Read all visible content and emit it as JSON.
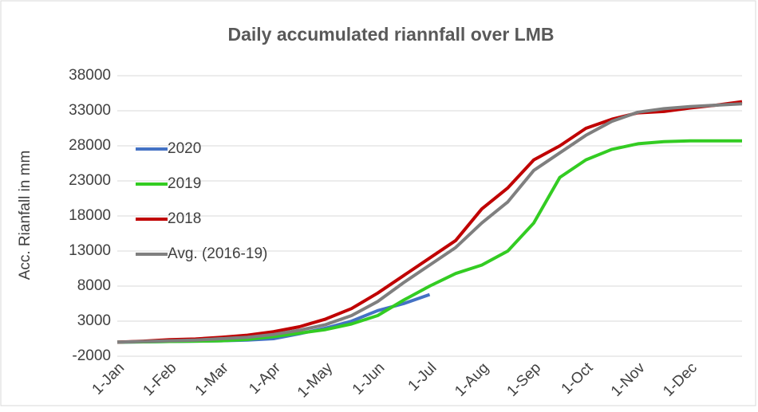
{
  "chart_data": {
    "type": "line",
    "title": "Daily accumulated riannfall over LMB",
    "y_label": "Acc. Rianfall in mm",
    "categories": [
      "1-Jan",
      null,
      "1-Feb",
      null,
      "1-Mar",
      null,
      "1-Apr",
      null,
      "1-May",
      null,
      "1-Jun",
      null,
      "1-Jul",
      null,
      "1-Aug",
      null,
      "1-Sep",
      null,
      "1-Oct",
      null,
      "1-Nov",
      null,
      "1-Dec",
      null,
      null
    ],
    "series": [
      {
        "name": "2020",
        "color": "#4472c4",
        "values": [
          0,
          50,
          100,
          150,
          200,
          300,
          500,
          1200,
          2000,
          3000,
          4500,
          5500,
          6800,
          null,
          null,
          null,
          null,
          null,
          null,
          null,
          null,
          null,
          null,
          null,
          null
        ]
      },
      {
        "name": "2019",
        "color": "#33cc22",
        "values": [
          0,
          50,
          100,
          150,
          200,
          400,
          800,
          1300,
          1800,
          2600,
          3800,
          6000,
          8000,
          9800,
          11000,
          13000,
          17000,
          23500,
          26000,
          27500,
          28300,
          28600,
          28700,
          28700,
          28700
        ]
      },
      {
        "name": "2018",
        "color": "#c00000",
        "values": [
          0,
          150,
          350,
          450,
          700,
          1000,
          1500,
          2200,
          3300,
          4800,
          7000,
          9500,
          12000,
          14500,
          19000,
          22000,
          26000,
          28000,
          30500,
          31800,
          32700,
          32900,
          33400,
          33800,
          34300
        ]
      },
      {
        "name": "Avg. (2016-19)",
        "color": "#7f7f7f",
        "values": [
          0,
          100,
          200,
          300,
          500,
          700,
          1100,
          1700,
          2500,
          3800,
          5800,
          8500,
          11000,
          13500,
          17000,
          20000,
          24500,
          27000,
          29500,
          31500,
          32800,
          33300,
          33600,
          33800,
          34000
        ]
      }
    ],
    "ylim": [
      -2000,
      38000
    ],
    "yticks": [
      -2000,
      3000,
      8000,
      13000,
      18000,
      23000,
      28000,
      33000,
      38000
    ],
    "grid": true,
    "legend": "left"
  }
}
